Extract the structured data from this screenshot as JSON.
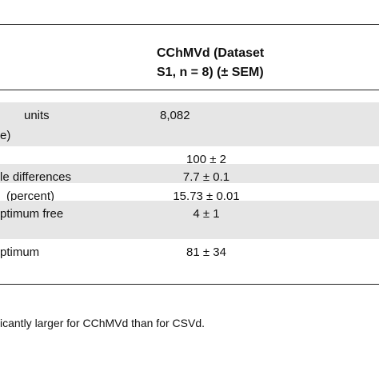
{
  "table": {
    "header": [
      "CChMVd (Dataset",
      "S1, n = 8) (± SEM)"
    ],
    "rows": [
      {
        "label": [
          "units",
          "e)"
        ],
        "value": "8,082"
      },
      {
        "label": [],
        "value": "100 ± 2"
      },
      {
        "label": [
          "le differences"
        ],
        "value": "7.7 ± 0.1"
      },
      {
        "label": [
          "(percent)"
        ],
        "value": "15.73 ± 0.01"
      },
      {
        "label": [
          "ptimum free"
        ],
        "value": "4 ± 1"
      },
      {
        "label": [
          "ptimum"
        ],
        "value": "81 ± 34"
      }
    ]
  },
  "footnote": "icantly larger for CChMVd than for CSVd."
}
